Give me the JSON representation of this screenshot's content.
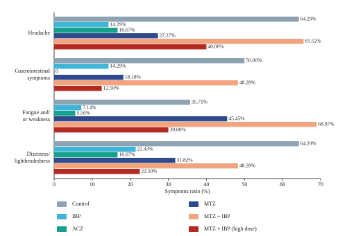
{
  "chart_data": {
    "type": "barh",
    "categories": [
      "Headache",
      "Gastrointestinal\nsymptoms",
      "Fatigue and/\nor weakness",
      "Dizziness/\nlightheadedness"
    ],
    "series": [
      {
        "name": "Control",
        "color": "#8da3b3",
        "values": [
          64.29,
          50.0,
          35.71,
          64.29
        ],
        "value_labels": [
          "64.29%",
          "50.00%",
          "35.71%",
          "64.29%"
        ]
      },
      {
        "name": "IBP",
        "color": "#3fb6d8",
        "values": [
          14.29,
          14.29,
          7.14,
          21.43
        ],
        "value_labels": [
          "14.29%",
          "14.29%",
          "7.14%",
          "21.43%"
        ]
      },
      {
        "name": "ACZ",
        "color": "#17a08a",
        "values": [
          16.67,
          0,
          5.56,
          16.67
        ],
        "value_labels": [
          "16.67%",
          "0",
          "5.56%",
          "16.67%"
        ]
      },
      {
        "name": "MTZ",
        "color": "#2f4a8c",
        "values": [
          27.27,
          18.18,
          45.45,
          31.82
        ],
        "value_labels": [
          "27.27%",
          "18.18%",
          "45.45%",
          "31.82%"
        ]
      },
      {
        "name": "MTZ + IBP",
        "color": "#f2a47f",
        "values": [
          65.52,
          48.28,
          68.97,
          48.28
        ],
        "value_labels": [
          "65.52%",
          "48.28%",
          "68.97%",
          "48.28%"
        ]
      },
      {
        "name": "MTZ + IBP (high dose)",
        "color": "#b32a22",
        "values": [
          40.0,
          12.5,
          30.0,
          22.5
        ],
        "value_labels": [
          "40.00%",
          "12.50%",
          "30.00%",
          "22.50%"
        ]
      }
    ],
    "x_label": "Symptoms ratio (%)",
    "xlim": [
      0,
      70
    ],
    "xticks": [
      0,
      10,
      20,
      30,
      40,
      50,
      60,
      70
    ],
    "legend": "bottom"
  }
}
